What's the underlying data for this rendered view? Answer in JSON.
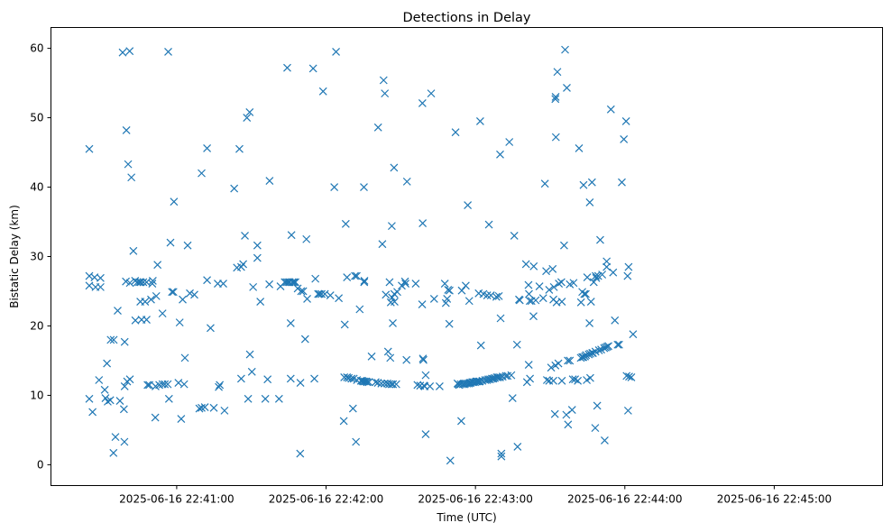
{
  "chart_data": {
    "type": "scatter",
    "title": "Detections in Delay",
    "xlabel": "Time (UTC)",
    "ylabel": "Bistatic Delay (km)",
    "marker": "x",
    "color": "#1f77b4",
    "x_unit": "seconds after 2025-06-16 22:40:00 UTC",
    "xlim": [
      9.5,
      343.5
    ],
    "ylim": [
      -3,
      63
    ],
    "xticks": [
      {
        "value": 60,
        "label": "2025-06-16 22:41:00"
      },
      {
        "value": 120,
        "label": "2025-06-16 22:42:00"
      },
      {
        "value": 180,
        "label": "2025-06-16 22:43:00"
      },
      {
        "value": 240,
        "label": "2025-06-16 22:44:00"
      },
      {
        "value": 300,
        "label": "2025-06-16 22:45:00"
      }
    ],
    "yticks": [
      {
        "value": 0,
        "label": "0"
      },
      {
        "value": 10,
        "label": "10"
      },
      {
        "value": 20,
        "label": "20"
      },
      {
        "value": 30,
        "label": "30"
      },
      {
        "value": 40,
        "label": "40"
      },
      {
        "value": 50,
        "label": "50"
      },
      {
        "value": 60,
        "label": "60"
      }
    ],
    "points": [
      [
        24.9,
        45.5
      ],
      [
        24.9,
        27.2
      ],
      [
        24.9,
        25.8
      ],
      [
        24.9,
        9.5
      ],
      [
        26.2,
        7.6
      ],
      [
        27.0,
        27.0
      ],
      [
        27.4,
        25.6
      ],
      [
        29.4,
        26.9
      ],
      [
        29.4,
        25.6
      ],
      [
        28.8,
        12.2
      ],
      [
        31.1,
        10.8
      ],
      [
        32.0,
        14.6
      ],
      [
        31.4,
        9.6
      ],
      [
        32.3,
        9.1
      ],
      [
        33.3,
        9.3
      ],
      [
        33.5,
        18.0
      ],
      [
        34.7,
        18.0
      ],
      [
        34.6,
        1.7
      ],
      [
        35.4,
        4.0
      ],
      [
        36.3,
        22.2
      ],
      [
        37.2,
        9.2
      ],
      [
        38.3,
        59.4
      ],
      [
        39.1,
        17.7
      ],
      [
        38.8,
        8.0
      ],
      [
        39.0,
        3.3
      ],
      [
        39.1,
        11.3
      ],
      [
        39.6,
        26.4
      ],
      [
        39.8,
        48.2
      ],
      [
        40.1,
        12.0
      ],
      [
        40.5,
        43.3
      ],
      [
        41.1,
        59.6
      ],
      [
        41.8,
        41.4
      ],
      [
        41.2,
        26.2
      ],
      [
        41.2,
        12.3
      ],
      [
        42.6,
        30.8
      ],
      [
        43.3,
        26.5
      ],
      [
        43.4,
        20.8
      ],
      [
        44.2,
        26.3
      ],
      [
        45.0,
        26.3
      ],
      [
        45.6,
        26.3
      ],
      [
        45.4,
        23.5
      ],
      [
        45.9,
        20.9
      ],
      [
        46.6,
        26.3
      ],
      [
        47.9,
        26.3
      ],
      [
        47.3,
        23.5
      ],
      [
        47.9,
        20.9
      ],
      [
        48.3,
        11.5
      ],
      [
        49.0,
        11.5
      ],
      [
        49.7,
        23.8
      ],
      [
        50.2,
        26.1
      ],
      [
        50.4,
        26.5
      ],
      [
        51.4,
        6.8
      ],
      [
        51.5,
        11.3
      ],
      [
        51.8,
        24.3
      ],
      [
        52.3,
        28.8
      ],
      [
        53.0,
        11.5
      ],
      [
        54.3,
        11.6
      ],
      [
        54.3,
        21.8
      ],
      [
        55.2,
        11.6
      ],
      [
        56.4,
        11.6
      ],
      [
        56.6,
        59.5
      ],
      [
        56.9,
        9.5
      ],
      [
        57.5,
        32.0
      ],
      [
        58.1,
        24.9
      ],
      [
        58.7,
        24.9
      ],
      [
        58.9,
        37.9
      ],
      [
        60.7,
        11.8
      ],
      [
        61.2,
        20.5
      ],
      [
        61.8,
        6.6
      ],
      [
        62.4,
        23.8
      ],
      [
        63.0,
        11.6
      ],
      [
        63.3,
        15.4
      ],
      [
        64.4,
        31.6
      ],
      [
        65.3,
        24.7
      ],
      [
        67.1,
        24.5
      ],
      [
        69.1,
        8.1
      ],
      [
        70.0,
        8.2
      ],
      [
        70.0,
        42.0
      ],
      [
        71.3,
        8.3
      ],
      [
        72.2,
        45.6
      ],
      [
        72.2,
        26.6
      ],
      [
        73.6,
        19.7
      ],
      [
        74.9,
        8.2
      ],
      [
        76.5,
        26.1
      ],
      [
        76.9,
        11.2
      ],
      [
        77.3,
        11.5
      ],
      [
        78.7,
        26.1
      ],
      [
        79.2,
        7.8
      ],
      [
        83.1,
        39.8
      ],
      [
        84.2,
        28.4
      ],
      [
        85.2,
        45.5
      ],
      [
        85.9,
        28.5
      ],
      [
        85.9,
        12.4
      ],
      [
        86.7,
        28.9
      ],
      [
        87.4,
        33.0
      ],
      [
        88.2,
        50.0
      ],
      [
        88.7,
        9.5
      ],
      [
        89.3,
        50.8
      ],
      [
        89.4,
        15.9
      ],
      [
        90.2,
        13.4
      ],
      [
        90.7,
        25.6
      ],
      [
        92.4,
        31.6
      ],
      [
        92.4,
        29.8
      ],
      [
        93.6,
        23.5
      ],
      [
        95.6,
        9.5
      ],
      [
        96.5,
        12.3
      ],
      [
        97.2,
        26.0
      ],
      [
        97.3,
        40.9
      ],
      [
        101.1,
        9.5
      ],
      [
        101.7,
        25.7
      ],
      [
        103.4,
        26.3
      ],
      [
        104.1,
        26.3
      ],
      [
        104.4,
        57.2
      ],
      [
        104.8,
        26.3
      ],
      [
        105.4,
        26.3
      ],
      [
        105.8,
        12.4
      ],
      [
        105.8,
        20.4
      ],
      [
        106.1,
        33.1
      ],
      [
        106.5,
        26.3
      ],
      [
        107.1,
        26.3
      ],
      [
        107.7,
        26.3
      ],
      [
        108.6,
        25.4
      ],
      [
        109.6,
        1.6
      ],
      [
        109.7,
        11.8
      ],
      [
        110.0,
        25.0
      ],
      [
        110.8,
        25.0
      ],
      [
        111.6,
        18.1
      ],
      [
        112.1,
        32.5
      ],
      [
        112.4,
        23.9
      ],
      [
        114.8,
        57.1
      ],
      [
        115.3,
        12.4
      ],
      [
        115.7,
        26.8
      ],
      [
        116.8,
        24.6
      ],
      [
        117.4,
        24.6
      ],
      [
        118.2,
        24.6
      ],
      [
        118.8,
        53.8
      ],
      [
        119.5,
        24.6
      ],
      [
        121.7,
        24.4
      ],
      [
        123.3,
        40.0
      ],
      [
        124.0,
        59.5
      ],
      [
        125.1,
        24.0
      ],
      [
        127.1,
        6.3
      ],
      [
        127.3,
        12.6
      ],
      [
        127.5,
        20.2
      ],
      [
        127.9,
        34.7
      ],
      [
        128.4,
        27.0
      ],
      [
        128.4,
        12.6
      ],
      [
        129.1,
        12.5
      ],
      [
        130.2,
        12.4
      ],
      [
        130.8,
        8.1
      ],
      [
        131.1,
        12.4
      ],
      [
        131.6,
        27.2
      ],
      [
        132.3,
        27.2
      ],
      [
        132.0,
        3.3
      ],
      [
        132.4,
        12.2
      ],
      [
        133.5,
        22.4
      ],
      [
        134.0,
        12.1
      ],
      [
        134.5,
        12.1
      ],
      [
        134.9,
        12.0
      ],
      [
        135.5,
        12.0
      ],
      [
        135.3,
        26.3
      ],
      [
        135.2,
        40.0
      ],
      [
        135.4,
        26.5
      ],
      [
        136.1,
        12.0
      ],
      [
        136.5,
        11.9
      ],
      [
        137.2,
        11.9
      ],
      [
        138.3,
        15.6
      ],
      [
        139.9,
        11.9
      ],
      [
        140.9,
        48.6
      ],
      [
        140.8,
        11.8
      ],
      [
        142.2,
        11.7
      ],
      [
        142.6,
        31.8
      ],
      [
        143.1,
        55.4
      ],
      [
        143.5,
        11.7
      ],
      [
        143.6,
        53.5
      ],
      [
        144.0,
        24.5
      ],
      [
        144.6,
        11.7
      ],
      [
        144.9,
        16.3
      ],
      [
        145.3,
        11.6
      ],
      [
        145.5,
        26.3
      ],
      [
        145.8,
        15.4
      ],
      [
        146.3,
        11.6
      ],
      [
        146.0,
        23.4
      ],
      [
        146.4,
        34.4
      ],
      [
        146.5,
        24.1
      ],
      [
        146.8,
        20.4
      ],
      [
        146.9,
        11.6
      ],
      [
        147.3,
        42.8
      ],
      [
        147.4,
        24.6
      ],
      [
        147.5,
        23.5
      ],
      [
        148.2,
        11.6
      ],
      [
        148.6,
        24.9
      ],
      [
        150.4,
        25.8
      ],
      [
        151.7,
        26.4
      ],
      [
        151.9,
        26.1
      ],
      [
        152.3,
        15.1
      ],
      [
        152.5,
        40.8
      ],
      [
        156.0,
        26.1
      ],
      [
        156.7,
        11.5
      ],
      [
        157.8,
        11.4
      ],
      [
        158.6,
        23.1
      ],
      [
        158.7,
        52.1
      ],
      [
        158.8,
        34.8
      ],
      [
        158.9,
        15.3
      ],
      [
        159.1,
        15.1
      ],
      [
        159.3,
        11.4
      ],
      [
        159.6,
        11.3
      ],
      [
        160.0,
        4.4
      ],
      [
        160.0,
        12.9
      ],
      [
        161.7,
        11.3
      ],
      [
        162.2,
        53.5
      ],
      [
        163.4,
        23.9
      ],
      [
        165.6,
        11.3
      ],
      [
        167.7,
        26.1
      ],
      [
        168.1,
        23.3
      ],
      [
        168.6,
        23.9
      ],
      [
        169.0,
        25.2
      ],
      [
        169.5,
        20.3
      ],
      [
        169.6,
        25.1
      ],
      [
        169.9,
        0.6
      ],
      [
        172.0,
        47.9
      ],
      [
        172.8,
        11.7
      ],
      [
        173.1,
        11.6
      ],
      [
        173.5,
        11.5
      ],
      [
        174.1,
        11.6
      ],
      [
        174.3,
        6.3
      ],
      [
        174.9,
        11.6
      ],
      [
        174.5,
        25.1
      ],
      [
        175.5,
        11.6
      ],
      [
        175.9,
        11.7
      ],
      [
        176.6,
        11.7
      ],
      [
        176.1,
        25.8
      ],
      [
        176.9,
        37.4
      ],
      [
        177.3,
        11.7
      ],
      [
        177.5,
        23.6
      ],
      [
        177.7,
        11.8
      ],
      [
        178.1,
        11.8
      ],
      [
        178.7,
        11.9
      ],
      [
        179.1,
        11.9
      ],
      [
        179.8,
        11.9
      ],
      [
        180.3,
        12.0
      ],
      [
        180.7,
        12.0
      ],
      [
        181.3,
        12.0
      ],
      [
        181.3,
        24.7
      ],
      [
        181.8,
        12.0
      ],
      [
        181.9,
        49.5
      ],
      [
        182.2,
        17.2
      ],
      [
        182.8,
        12.1
      ],
      [
        183.2,
        24.6
      ],
      [
        183.9,
        12.2
      ],
      [
        184.7,
        24.4
      ],
      [
        184.6,
        12.2
      ],
      [
        185.2,
        12.3
      ],
      [
        185.4,
        34.6
      ],
      [
        185.9,
        12.3
      ],
      [
        186.2,
        24.4
      ],
      [
        186.6,
        12.4
      ],
      [
        187.2,
        12.4
      ],
      [
        187.8,
        12.5
      ],
      [
        188.4,
        24.2
      ],
      [
        188.6,
        12.6
      ],
      [
        189.2,
        12.6
      ],
      [
        189.4,
        24.3
      ],
      [
        189.9,
        12.6
      ],
      [
        189.9,
        44.7
      ],
      [
        190.1,
        21.1
      ],
      [
        190.4,
        1.2
      ],
      [
        190.4,
        1.6
      ],
      [
        190.9,
        12.7
      ],
      [
        192.2,
        12.8
      ],
      [
        192.9,
        12.8
      ],
      [
        193.6,
        46.5
      ],
      [
        194.4,
        12.9
      ],
      [
        194.9,
        9.6
      ],
      [
        195.6,
        33.0
      ],
      [
        196.7,
        17.3
      ],
      [
        196.9,
        2.6
      ],
      [
        197.5,
        23.8
      ],
      [
        197.8,
        23.7
      ],
      [
        200.3,
        28.9
      ],
      [
        200.7,
        11.9
      ],
      [
        201.3,
        25.9
      ],
      [
        201.5,
        24.6
      ],
      [
        201.4,
        14.4
      ],
      [
        201.8,
        23.6
      ],
      [
        201.9,
        12.4
      ],
      [
        202.5,
        23.6
      ],
      [
        203.3,
        21.4
      ],
      [
        203.4,
        28.6
      ],
      [
        204.2,
        23.7
      ],
      [
        205.7,
        25.7
      ],
      [
        207.2,
        24.0
      ],
      [
        207.9,
        40.5
      ],
      [
        208.4,
        27.9
      ],
      [
        208.7,
        12.2
      ],
      [
        209.6,
        25.2
      ],
      [
        209.6,
        12.1
      ],
      [
        210.4,
        14.0
      ],
      [
        211.0,
        28.2
      ],
      [
        211.3,
        12.1
      ],
      [
        211.3,
        23.8
      ],
      [
        211.5,
        25.6
      ],
      [
        211.9,
        7.3
      ],
      [
        212.1,
        14.3
      ],
      [
        212.1,
        52.7
      ],
      [
        212.2,
        53.0
      ],
      [
        212.3,
        47.2
      ],
      [
        212.6,
        23.4
      ],
      [
        212.9,
        56.6
      ],
      [
        213.3,
        14.6
      ],
      [
        213.5,
        26.1
      ],
      [
        214.5,
        26.3
      ],
      [
        214.7,
        23.5
      ],
      [
        214.7,
        12.1
      ],
      [
        215.6,
        31.6
      ],
      [
        216.0,
        59.8
      ],
      [
        216.5,
        7.2
      ],
      [
        216.7,
        54.3
      ],
      [
        217.1,
        15.0
      ],
      [
        217.2,
        5.8
      ],
      [
        217.9,
        15.0
      ],
      [
        217.9,
        26.0
      ],
      [
        218.8,
        7.9
      ],
      [
        219.1,
        12.3
      ],
      [
        219.4,
        26.2
      ],
      [
        220.0,
        12.3
      ],
      [
        221.1,
        12.1
      ],
      [
        221.6,
        45.6
      ],
      [
        222.3,
        15.4
      ],
      [
        222.4,
        23.4
      ],
      [
        222.9,
        15.5
      ],
      [
        222.9,
        24.9
      ],
      [
        223.3,
        15.5
      ],
      [
        223.4,
        40.3
      ],
      [
        223.7,
        24.6
      ],
      [
        224.0,
        15.6
      ],
      [
        224.3,
        24.6
      ],
      [
        224.4,
        15.8
      ],
      [
        224.7,
        12.2
      ],
      [
        224.9,
        27.0
      ],
      [
        225.5,
        15.9
      ],
      [
        225.8,
        20.4
      ],
      [
        225.9,
        37.8
      ],
      [
        226.1,
        12.5
      ],
      [
        226.1,
        16.0
      ],
      [
        226.4,
        23.5
      ],
      [
        226.8,
        40.7
      ],
      [
        226.9,
        16.1
      ],
      [
        227.2,
        16.1
      ],
      [
        227.5,
        26.3
      ],
      [
        228.1,
        5.3
      ],
      [
        228.3,
        27.2
      ],
      [
        228.2,
        16.3
      ],
      [
        228.5,
        26.9
      ],
      [
        228.9,
        8.5
      ],
      [
        229.3,
        27.2
      ],
      [
        229.6,
        16.5
      ],
      [
        230.1,
        32.4
      ],
      [
        230.5,
        16.6
      ],
      [
        230.9,
        27.4
      ],
      [
        231.7,
        16.8
      ],
      [
        231.9,
        3.5
      ],
      [
        232.3,
        16.9
      ],
      [
        232.7,
        29.3
      ],
      [
        232.7,
        28.5
      ],
      [
        232.9,
        17.0
      ],
      [
        233.4,
        17.1
      ],
      [
        234.4,
        51.2
      ],
      [
        235.3,
        27.7
      ],
      [
        236.0,
        20.8
      ],
      [
        237.1,
        17.3
      ],
      [
        237.7,
        17.3
      ],
      [
        238.8,
        40.7
      ],
      [
        239.6,
        46.9
      ],
      [
        240.5,
        49.5
      ],
      [
        240.7,
        12.8
      ],
      [
        241.1,
        27.2
      ],
      [
        241.3,
        7.8
      ],
      [
        241.5,
        28.5
      ],
      [
        241.7,
        12.7
      ],
      [
        242.6,
        12.6
      ],
      [
        243.3,
        18.8
      ]
    ]
  }
}
